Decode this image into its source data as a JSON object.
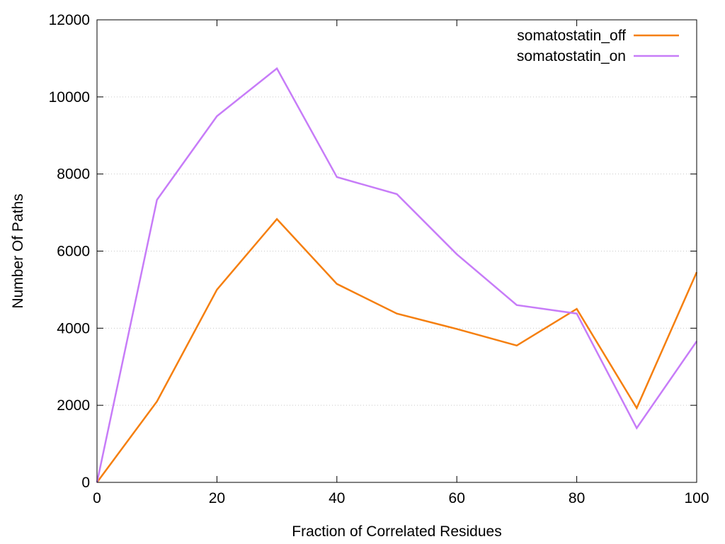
{
  "chart_data": {
    "type": "line",
    "title": "",
    "xlabel": "Fraction of Correlated Residues",
    "ylabel": "Number Of Paths",
    "xlim": [
      0,
      100
    ],
    "ylim": [
      0,
      12000
    ],
    "x_ticks": [
      0,
      20,
      40,
      60,
      80,
      100
    ],
    "y_ticks": [
      0,
      2000,
      4000,
      6000,
      8000,
      10000,
      12000
    ],
    "grid": "horizontal dotted",
    "legend_position": "top-right",
    "x": [
      0,
      10,
      20,
      30,
      40,
      50,
      60,
      70,
      80,
      90,
      100
    ],
    "series": [
      {
        "name": "somatostatin_off",
        "color": "#f57f0e",
        "values": [
          0,
          2100,
          5000,
          6830,
          5150,
          4380,
          3980,
          3550,
          4500,
          1930,
          5450
        ]
      },
      {
        "name": "somatostatin_on",
        "color": "#c77cf8",
        "values": [
          0,
          7330,
          9500,
          10740,
          7920,
          7480,
          5920,
          4600,
          4380,
          1410,
          3660
        ]
      }
    ]
  }
}
